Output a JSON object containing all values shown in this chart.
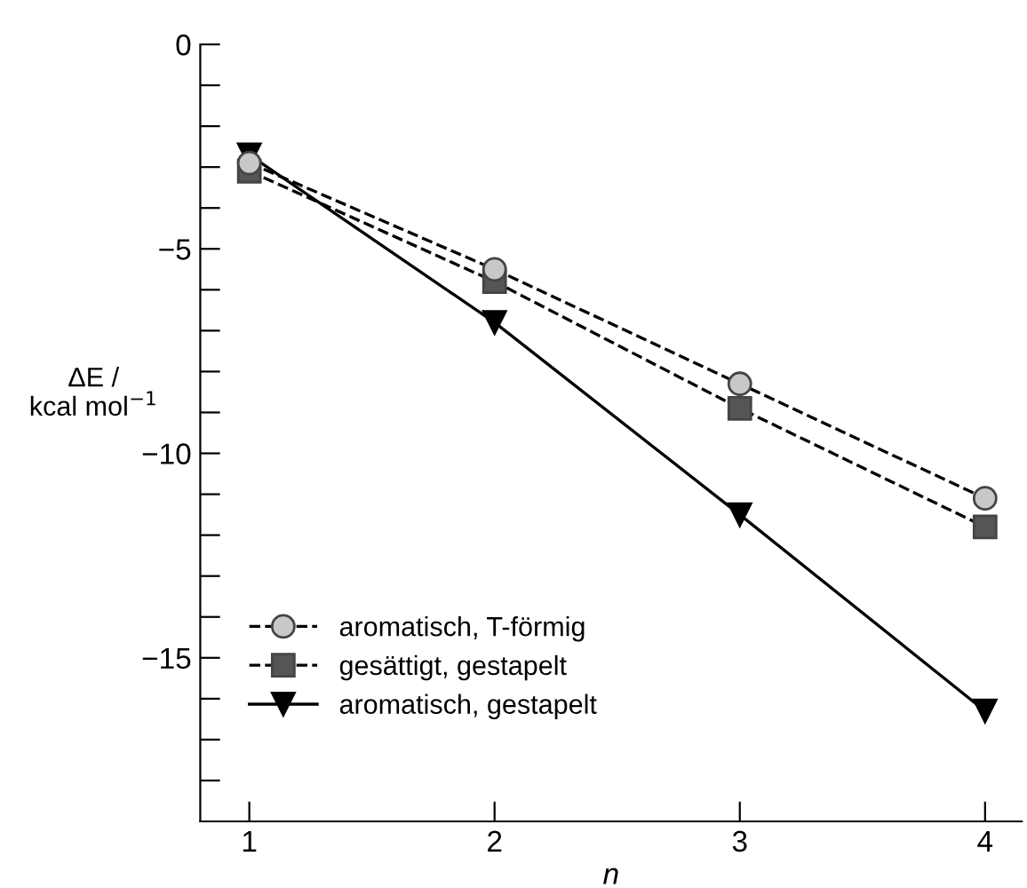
{
  "chart_data": {
    "type": "line",
    "xlabel": "n",
    "ylabel": "ΔE /\nkcal mol$^{−1}$",
    "x": [
      1,
      2,
      3,
      4
    ],
    "series": [
      {
        "name": "aromatisch, T-förmig",
        "color": "#c8c8c8",
        "marker": "circle",
        "line_style": "dashed",
        "values": [
          -2.9,
          -5.5,
          -8.3,
          -11.1
        ]
      },
      {
        "name": "gesättigt, gestapelt",
        "color": "#555555",
        "marker": "square",
        "line_style": "dashed",
        "values": [
          -3.1,
          -5.8,
          -8.9,
          -11.8
        ]
      },
      {
        "name": "aromatisch, gestapelt",
        "color": "#000000",
        "marker": "triangle",
        "line_style": "solid",
        "values": [
          -2.7,
          -6.8,
          -11.5,
          -16.3
        ]
      }
    ],
    "xlim": [
      0.8,
      4.15
    ],
    "xticks": [
      1,
      2,
      3,
      4
    ],
    "ylim": [
      -19,
      0
    ],
    "yticks": [
      0,
      {
        "value": -1,
        "label": null
      },
      {
        "value": -2,
        "label": null
      },
      {
        "value": -3,
        "label": null
      },
      {
        "value": -4,
        "label": null
      },
      {
        "value": -5,
        "label": "−5"
      },
      {
        "value": -6,
        "label": null
      },
      {
        "value": -7,
        "label": null
      },
      {
        "value": -8,
        "label": null
      },
      {
        "value": -9,
        "label": null
      },
      {
        "value": -10,
        "label": "−10"
      },
      {
        "value": -11,
        "label": null
      },
      {
        "value": -12,
        "label": null
      },
      {
        "value": -13,
        "label": null
      },
      {
        "value": -14,
        "label": null
      },
      {
        "value": -15,
        "label": "−15"
      },
      {
        "value": -16,
        "label": null
      },
      {
        "value": -17,
        "label": null
      },
      {
        "value": -18,
        "label": null
      }
    ],
    "grid": false,
    "legend": "bottom left"
  }
}
